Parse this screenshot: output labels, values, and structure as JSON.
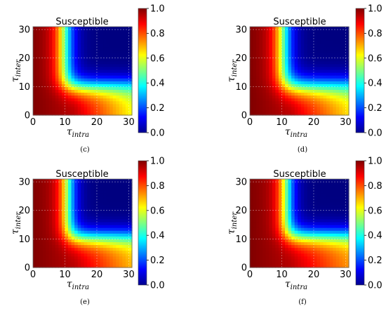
{
  "chart_data": [
    {
      "type": "heatmap",
      "panel_label": "(c)",
      "title": "Susceptible",
      "xlabel": {
        "base": "τ",
        "sub": "intra"
      },
      "ylabel": {
        "base": "τ",
        "sub": "inter"
      },
      "xlim": [
        0,
        31
      ],
      "ylim": [
        0,
        31
      ],
      "xticks": [
        0,
        10,
        20,
        30
      ],
      "yticks": [
        0,
        10,
        20,
        30
      ],
      "grid": true,
      "colorbar": {
        "range": [
          0.0,
          1.0
        ],
        "ticks": [
          "0.0",
          "0.2",
          "0.4",
          "0.6",
          "0.8",
          "1.0"
        ],
        "colormap": "jet",
        "placement": "right"
      },
      "z_model": {
        "v_boundary": 10,
        "h_boundary": 10,
        "corner": 0.55,
        "width_v": 1.8,
        "width_h": 2.0,
        "ramp": 0.035
      }
    },
    {
      "type": "heatmap",
      "panel_label": "(d)",
      "title": "Susceptible",
      "xlabel": {
        "base": "τ",
        "sub": "intra"
      },
      "ylabel": {
        "base": "τ",
        "sub": "inter"
      },
      "xlim": [
        0,
        31
      ],
      "ylim": [
        0,
        31
      ],
      "xticks": [
        0,
        10,
        20,
        30
      ],
      "yticks": [
        0,
        10,
        20,
        30
      ],
      "grid": true,
      "colorbar": {
        "range": [
          0.0,
          1.0
        ],
        "ticks": [
          "0.0",
          "0.2",
          "0.4",
          "0.6",
          "0.8",
          "1.0"
        ],
        "colormap": "jet",
        "placement": "right"
      },
      "z_model": {
        "v_boundary": 10.5,
        "h_boundary": 10,
        "corner": 0.55,
        "width_v": 1.8,
        "width_h": 2.2,
        "ramp": 0.03
      }
    },
    {
      "type": "heatmap",
      "panel_label": "(e)",
      "title": "Susceptible",
      "xlabel": {
        "base": "τ",
        "sub": "intra"
      },
      "ylabel": {
        "base": "τ",
        "sub": "inter"
      },
      "xlim": [
        0,
        31
      ],
      "ylim": [
        0,
        31
      ],
      "xticks": [
        0,
        10,
        20,
        30
      ],
      "yticks": [
        0,
        10,
        20,
        30
      ],
      "grid": true,
      "colorbar": {
        "range": [
          0.0,
          1.0
        ],
        "ticks": [
          "0.0",
          "0.2",
          "0.4",
          "0.6",
          "0.8",
          "1.0"
        ],
        "colormap": "jet",
        "placement": "right"
      },
      "z_model": {
        "v_boundary": 11,
        "h_boundary": 10.5,
        "corner": 0.6,
        "width_v": 1.6,
        "width_h": 2.0,
        "ramp": 0.025
      }
    },
    {
      "type": "heatmap",
      "panel_label": "(f)",
      "title": "Susceptible",
      "xlabel": {
        "base": "τ",
        "sub": "intra"
      },
      "ylabel": {
        "base": "τ",
        "sub": "inter"
      },
      "xlim": [
        0,
        31
      ],
      "ylim": [
        0,
        31
      ],
      "xticks": [
        0,
        10,
        20,
        30
      ],
      "yticks": [
        0,
        10,
        20,
        30
      ],
      "grid": true,
      "colorbar": {
        "range": [
          0.0,
          1.0
        ],
        "ticks": [
          "0.0",
          "0.2",
          "0.4",
          "0.6",
          "0.8",
          "1.0"
        ],
        "colormap": "jet",
        "placement": "right"
      },
      "z_model": {
        "v_boundary": 11.5,
        "h_boundary": 11,
        "corner": 0.6,
        "width_v": 1.6,
        "width_h": 2.0,
        "ramp": 0.02
      }
    }
  ]
}
